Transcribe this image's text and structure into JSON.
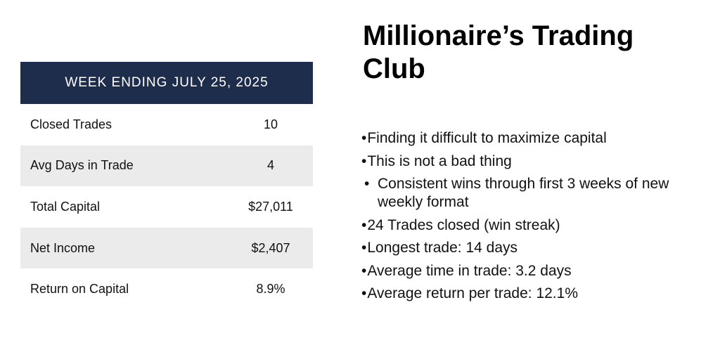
{
  "table": {
    "header": "WEEK ENDING JULY 25, 2025",
    "rows": [
      {
        "label": "Closed Trades",
        "value": "10"
      },
      {
        "label": "Avg Days in Trade",
        "value": "4"
      },
      {
        "label": "Total Capital",
        "value": "$27,011"
      },
      {
        "label": "Net Income",
        "value": "$2,407"
      },
      {
        "label": "Return on Capital",
        "value": "8.9%"
      }
    ]
  },
  "title": "Millionaire’s Trading Club",
  "bullet_marker": "•",
  "bullets": [
    "Finding it difficult to maximize capital",
    "This is not a bad thing",
    "Consistent wins through first 3 weeks of new weekly format",
    "24 Trades closed (win streak)",
    "Longest trade: 14 days",
    "Average time in trade: 3.2 days",
    "Average return per trade: 12.1%"
  ],
  "colors": {
    "header_bg": "#1f2d4d",
    "row_shade": "#ebebeb"
  }
}
